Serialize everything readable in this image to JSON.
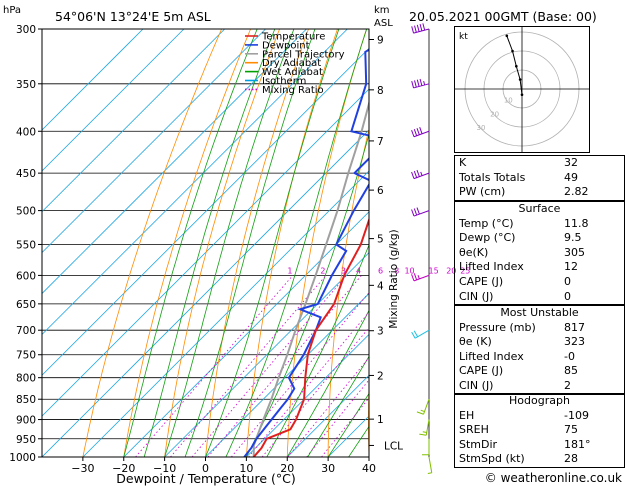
{
  "header": {
    "station": "54°06'N  13°24'E  5m  ASL",
    "datetime": "20.05.2021  00GMT  (Base: 00)",
    "hpa_label": "hPa",
    "km_label": "km",
    "asl_label": "ASL"
  },
  "footer": {
    "copyright": "© weatheronline.co.uk"
  },
  "chart_data": {
    "type": "line",
    "title": "",
    "xlabel": "Dewpoint / Temperature (°C)",
    "ylabel": "",
    "y2label": "Mixing Ratio (g/kg)",
    "xlim": [
      -40,
      40
    ],
    "ylim": [
      1000,
      300
    ],
    "y_scale": "log",
    "skew": "45deg",
    "x_ticks": [
      -30,
      -20,
      -10,
      0,
      10,
      20,
      30,
      40
    ],
    "p_ticks": [
      300,
      350,
      400,
      450,
      500,
      550,
      600,
      650,
      700,
      750,
      800,
      850,
      900,
      950,
      1000
    ],
    "km_ticks": [
      {
        "km": "9",
        "p": 309
      },
      {
        "km": "8",
        "p": 356
      },
      {
        "km": "7",
        "p": 411
      },
      {
        "km": "6",
        "p": 472
      },
      {
        "km": "5",
        "p": 541
      },
      {
        "km": "4",
        "p": 617
      },
      {
        "km": "3",
        "p": 701
      },
      {
        "km": "2",
        "p": 795
      },
      {
        "km": "1",
        "p": 899
      }
    ],
    "lcl_label": "LCL",
    "lcl_p": 968,
    "mixing_ratio_labels": [
      "1",
      "2",
      "3",
      "4",
      "6",
      "8",
      "10",
      "15",
      "20",
      "25"
    ],
    "mixing_ratio_values": [
      1,
      2,
      3,
      4,
      6,
      8,
      10,
      15,
      20,
      25
    ],
    "legend_position": "top-right",
    "legend": [
      {
        "name": "Temperature",
        "color": "#e02020",
        "style": "solid"
      },
      {
        "name": "Dewpoint",
        "color": "#2040e0",
        "style": "solid"
      },
      {
        "name": "Parcel Trajectory",
        "color": "#a0a0a0",
        "style": "solid"
      },
      {
        "name": "Dry Adiabat",
        "color": "#ff8c00",
        "style": "solid"
      },
      {
        "name": "Wet Adiabat",
        "color": "#00a000",
        "style": "solid"
      },
      {
        "name": "Isotherm",
        "color": "#00a0e0",
        "style": "solid"
      },
      {
        "name": "Mixing Ratio",
        "color": "#d000d0",
        "style": "dotted"
      }
    ],
    "temperature": {
      "p": [
        1000,
        975,
        950,
        925,
        900,
        875,
        850,
        800,
        750,
        700,
        650,
        600,
        550,
        500,
        450,
        400,
        350,
        300
      ],
      "t": [
        11.8,
        11.5,
        10.5,
        14.0,
        13.0,
        11.5,
        10.0,
        5.0,
        0.0,
        -4.0,
        -6.0,
        -10.5,
        -14.0,
        -19.5,
        -26.0,
        -33.0,
        -41.0,
        -49.0
      ]
    },
    "dewpoint": {
      "p": [
        1000,
        975,
        950,
        925,
        900,
        875,
        850,
        825,
        800,
        750,
        700,
        675,
        660,
        650,
        600,
        560,
        550,
        500,
        460,
        450,
        440,
        410,
        400,
        350,
        320,
        310,
        300
      ],
      "td": [
        9.5,
        9.0,
        8.0,
        7.5,
        7.0,
        6.5,
        6.0,
        5.0,
        1.0,
        -1.0,
        -4.0,
        -6.0,
        -13.0,
        -10.0,
        -13.5,
        -16.0,
        -20.0,
        -24.0,
        -27.0,
        -33.0,
        -33.0,
        -33.0,
        -44.0,
        -52.0,
        -60.0,
        -58.0,
        -54.0
      ]
    },
    "parcel": {
      "p": [
        1000,
        968,
        900,
        850,
        800,
        750,
        700,
        650,
        600,
        550,
        500,
        450,
        400,
        350,
        300
      ],
      "t": [
        11.8,
        9.0,
        5.0,
        2.0,
        -1.5,
        -5.0,
        -9.0,
        -13.0,
        -17.5,
        -22.5,
        -28.0,
        -34.5,
        -41.5,
        -50.0,
        -59.0
      ]
    },
    "wind_barbs": [
      {
        "p": 1000,
        "dir": 170,
        "spd": 5
      },
      {
        "p": 950,
        "dir": 180,
        "spd": 10
      },
      {
        "p": 900,
        "dir": 190,
        "spd": 15
      },
      {
        "p": 850,
        "dir": 200,
        "spd": 15
      },
      {
        "p": 700,
        "dir": 240,
        "spd": 20
      },
      {
        "p": 600,
        "dir": 250,
        "spd": 25
      },
      {
        "p": 500,
        "dir": 250,
        "spd": 30
      },
      {
        "p": 450,
        "dir": 250,
        "spd": 35
      },
      {
        "p": 400,
        "dir": 250,
        "spd": 40
      },
      {
        "p": 350,
        "dir": 255,
        "spd": 45
      },
      {
        "p": 300,
        "dir": 255,
        "spd": 50
      }
    ]
  },
  "hodograph": {
    "label": "kt",
    "ring_labels": [
      "10",
      "20",
      "30"
    ],
    "points": [
      [
        0,
        -3
      ],
      [
        -1,
        5
      ],
      [
        -3,
        12
      ],
      [
        -5,
        20
      ],
      [
        -8,
        28
      ]
    ]
  },
  "indices": {
    "rows": [
      {
        "label": "K",
        "value": "32"
      },
      {
        "label": "Totals Totals",
        "value": "49"
      },
      {
        "label": "PW (cm)",
        "value": "2.82"
      }
    ]
  },
  "surface": {
    "title": "Surface",
    "rows": [
      {
        "label": "Temp (°C)",
        "value": "11.8"
      },
      {
        "label": "Dewp (°C)",
        "value": "9.5"
      },
      {
        "label": "θe(K)",
        "value": "305"
      },
      {
        "label": "Lifted Index",
        "value": "12"
      },
      {
        "label": "CAPE (J)",
        "value": "0"
      },
      {
        "label": "CIN (J)",
        "value": "0"
      }
    ]
  },
  "most_unstable": {
    "title": "Most Unstable",
    "rows": [
      {
        "label": "Pressure (mb)",
        "value": "817"
      },
      {
        "label": "θe (K)",
        "value": "323"
      },
      {
        "label": "Lifted Index",
        "value": "-0"
      },
      {
        "label": "CAPE (J)",
        "value": "85"
      },
      {
        "label": "CIN (J)",
        "value": "2"
      }
    ]
  },
  "hodograph_stats": {
    "title": "Hodograph",
    "rows": [
      {
        "label": "EH",
        "value": "-109"
      },
      {
        "label": "SREH",
        "value": "75"
      },
      {
        "label": "StmDir",
        "value": "181°"
      },
      {
        "label": "StmSpd (kt)",
        "value": "28"
      }
    ]
  }
}
